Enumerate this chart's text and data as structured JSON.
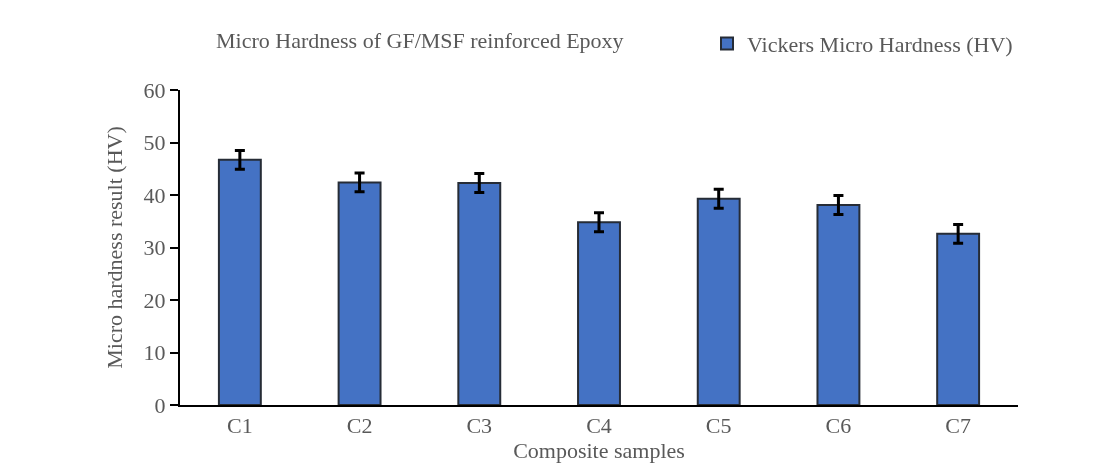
{
  "chart_data": {
    "type": "bar",
    "title": "Micro Hardness of GF/MSF reinforced Epoxy",
    "xlabel": "Composite samples",
    "ylabel": "Micro hardness result (HV)",
    "categories": [
      "C1",
      "C2",
      "C3",
      "C4",
      "C5",
      "C6",
      "C7"
    ],
    "series": [
      {
        "name": "Vickers Micro Hardness (HV)",
        "color": "#4472c4",
        "values": [
          46.7,
          42.4,
          42.3,
          34.8,
          39.3,
          38.1,
          32.6
        ],
        "errors": [
          1.8,
          1.8,
          1.8,
          1.8,
          1.8,
          1.8,
          1.8
        ]
      }
    ],
    "ylim": [
      0,
      60
    ],
    "yticks": [
      0,
      10,
      20,
      30,
      40,
      50,
      60
    ],
    "legend": "top right"
  }
}
